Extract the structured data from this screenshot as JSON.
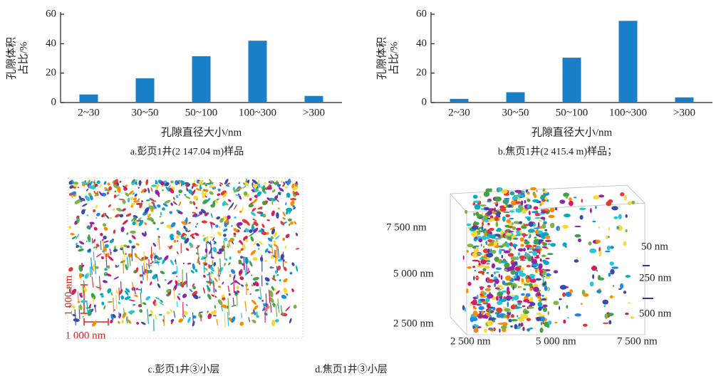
{
  "chart_data": [
    {
      "type": "bar",
      "ylabel": [
        "孔隙体积",
        "占比/%"
      ],
      "xlabel": "孔隙直径大小/nm",
      "caption": "a.彭页1井(2 147.04 m)样品",
      "categories": [
        "2~30",
        "30~50",
        "50~100",
        "100~300",
        ">300"
      ],
      "values": [
        5.5,
        16.5,
        31.5,
        42,
        4.5
      ],
      "color": "#1a7fc9",
      "ylim": [
        0,
        60
      ],
      "yticks": [
        0,
        20,
        40,
        60
      ]
    },
    {
      "type": "bar",
      "ylabel": [
        "孔隙体积",
        "占比/%"
      ],
      "xlabel": "孔隙直径大小/nm",
      "caption": "b.焦页1井(2 415.4 m)样品；",
      "categories": [
        "2~30",
        "30~50",
        "50~100",
        "100~300",
        ">300"
      ],
      "values": [
        2.5,
        7,
        30.5,
        55.5,
        3.5
      ],
      "color": "#1a7fc9",
      "ylim": [
        0,
        60
      ],
      "yticks": [
        0,
        20,
        40,
        60
      ]
    }
  ],
  "images": [
    {
      "caption": "c.彭页1井③小层",
      "labels": [
        "1 000 nm",
        "1 000 nm"
      ]
    },
    {
      "caption": "d.焦页1井③小层",
      "labels": [
        "7 500 nm",
        "5 000 nm",
        "2 500 nm",
        "2 500 nm",
        "5 000 nm",
        "7 500 nm",
        "50  nm",
        "250 nm",
        "500 nm"
      ]
    }
  ]
}
